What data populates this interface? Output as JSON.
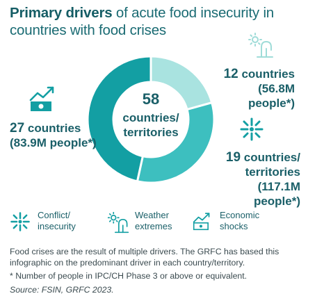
{
  "title": {
    "bold": "Primary drivers",
    "rest_line1": " of acute food insecurity in",
    "line2": "countries with food crises"
  },
  "center": {
    "number": "58",
    "line1": "countries/",
    "line2": "territories"
  },
  "colors": {
    "conflict": "#3dbfbf",
    "weather": "#a9e3e0",
    "economic": "#139fa3",
    "text": "#1a5f68"
  },
  "chart_data": {
    "type": "pie",
    "donut": true,
    "total": 58,
    "categories": [
      "Weather extremes",
      "Conflict/insecurity",
      "Economic shocks"
    ],
    "values": [
      12,
      19,
      27
    ],
    "slices": [
      {
        "key": "weather",
        "value": 12,
        "count_text": "12",
        "unit_text": "countries",
        "people_text": "(56.8M people*)",
        "icon": "weather-icon"
      },
      {
        "key": "conflict",
        "value": 19,
        "count_text": "19",
        "unit_text": "countries/",
        "unit_text2": "territories",
        "people_text": "(117.1M people*)",
        "icon": "conflict-icon"
      },
      {
        "key": "economic",
        "value": 27,
        "count_text": "27",
        "unit_text": "countries",
        "people_text": "(83.9M people*)",
        "icon": "economic-icon"
      }
    ]
  },
  "legend": [
    {
      "key": "conflict",
      "label": "Conflict/\ninsecurity",
      "icon": "conflict-icon"
    },
    {
      "key": "weather",
      "label": "Weather\nextremes",
      "icon": "weather-icon"
    },
    {
      "key": "economic",
      "label": "Economic\nshocks",
      "icon": "economic-icon"
    }
  ],
  "footnotes": {
    "line1": "Food crises are the result of multiple drivers. The GRFC has based this infographic on the predominant driver in each country/territory.",
    "line2": "* Number of people in IPC/CH Phase 3 or above or equivalent.",
    "source": "Source: FSIN, GRFC 2023."
  }
}
